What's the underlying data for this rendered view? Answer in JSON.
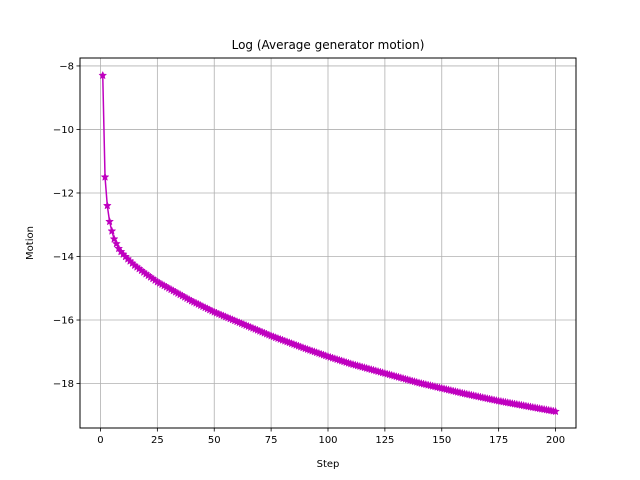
{
  "chart_data": {
    "type": "line",
    "title": "Log (Average generator motion)",
    "xlabel": "Step",
    "ylabel": "Motion",
    "xlim": [
      -9,
      209
    ],
    "ylim": [
      -19.4,
      -7.75
    ],
    "xticks": [
      0,
      25,
      50,
      75,
      100,
      125,
      150,
      175,
      200
    ],
    "xtick_labels": [
      "0",
      "25",
      "50",
      "75",
      "100",
      "125",
      "150",
      "175",
      "200"
    ],
    "yticks": [
      -18,
      -16,
      -14,
      -12,
      -10,
      -8
    ],
    "ytick_labels": [
      "−18",
      "−16",
      "−14",
      "−12",
      "−10",
      "−8"
    ],
    "grid": true,
    "legend": "none",
    "colors": {
      "series": "#bf00bf",
      "grid": "#b0b0b0",
      "frame": "#000000"
    },
    "marker": "star",
    "series": [
      {
        "x": [
          1,
          2,
          3,
          4,
          5,
          6,
          7,
          8,
          9,
          10,
          12,
          15,
          20,
          25,
          30,
          40,
          50,
          60,
          75,
          90,
          100,
          110,
          125,
          140,
          150,
          160,
          175,
          190,
          200
        ],
        "y": [
          -8.3,
          -11.5,
          -12.4,
          -12.9,
          -13.2,
          -13.45,
          -13.6,
          -13.75,
          -13.85,
          -13.93,
          -14.08,
          -14.28,
          -14.55,
          -14.8,
          -15.0,
          -15.4,
          -15.75,
          -16.05,
          -16.5,
          -16.9,
          -17.15,
          -17.38,
          -17.68,
          -17.98,
          -18.15,
          -18.32,
          -18.55,
          -18.75,
          -18.88
        ]
      }
    ]
  }
}
